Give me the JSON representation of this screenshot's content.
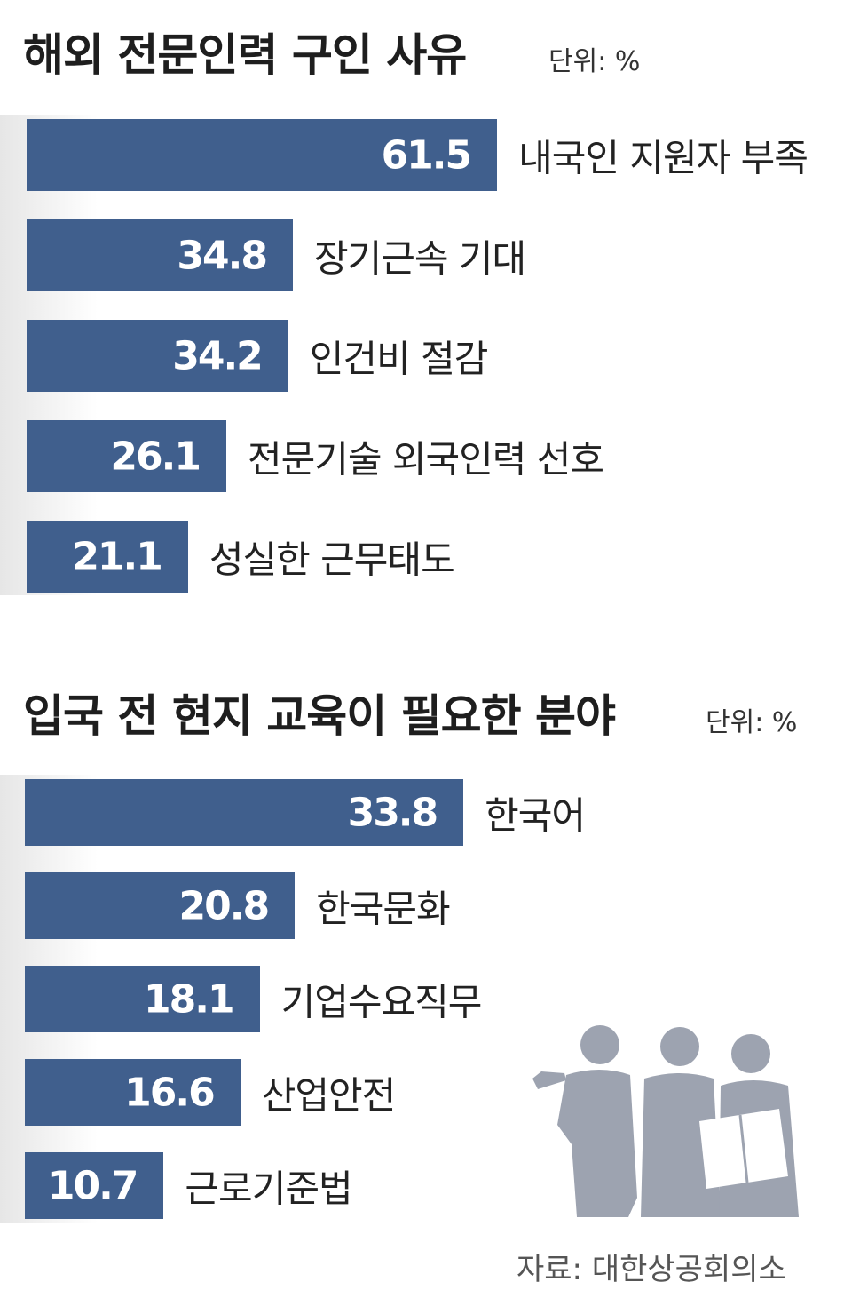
{
  "charts": [
    {
      "title": "해외 전문인력 구인 사유",
      "unit": "단위: %"
    },
    {
      "title": "입국 전 현지 교육이 필요한 분야",
      "unit": "단위: %"
    }
  ],
  "source": "자료: 대한상공회의소",
  "colors": {
    "bar": "#405f8d",
    "silhouette": "#9da3b0"
  },
  "icons": [
    "business-people-silhouette-icon"
  ],
  "chart_data": [
    {
      "type": "bar",
      "orientation": "horizontal",
      "title": "해외 전문인력 구인 사유",
      "unit": "단위: %",
      "categories": [
        "내국인 지원자 부족",
        "장기근속 기대",
        "인건비 절감",
        "전문기술 외국인력 선호",
        "성실한 근무태도"
      ],
      "values": [
        61.5,
        34.8,
        34.2,
        26.1,
        21.1
      ],
      "value_labels": [
        "61.5",
        "34.8",
        "34.2",
        "26.1",
        "21.1"
      ],
      "xlim": [
        0,
        100
      ],
      "grid": false,
      "legend": "none"
    },
    {
      "type": "bar",
      "orientation": "horizontal",
      "title": "입국 전 현지 교육이 필요한 분야",
      "unit": "단위: %",
      "categories": [
        "한국어",
        "한국문화",
        "기업수요직무",
        "산업안전",
        "근로기준법"
      ],
      "values": [
        33.8,
        20.8,
        18.1,
        16.6,
        10.7
      ],
      "value_labels": [
        "33.8",
        "20.8",
        "18.1",
        "16.6",
        "10.7"
      ],
      "xlim": [
        0,
        57
      ],
      "grid": false,
      "legend": "none"
    }
  ]
}
